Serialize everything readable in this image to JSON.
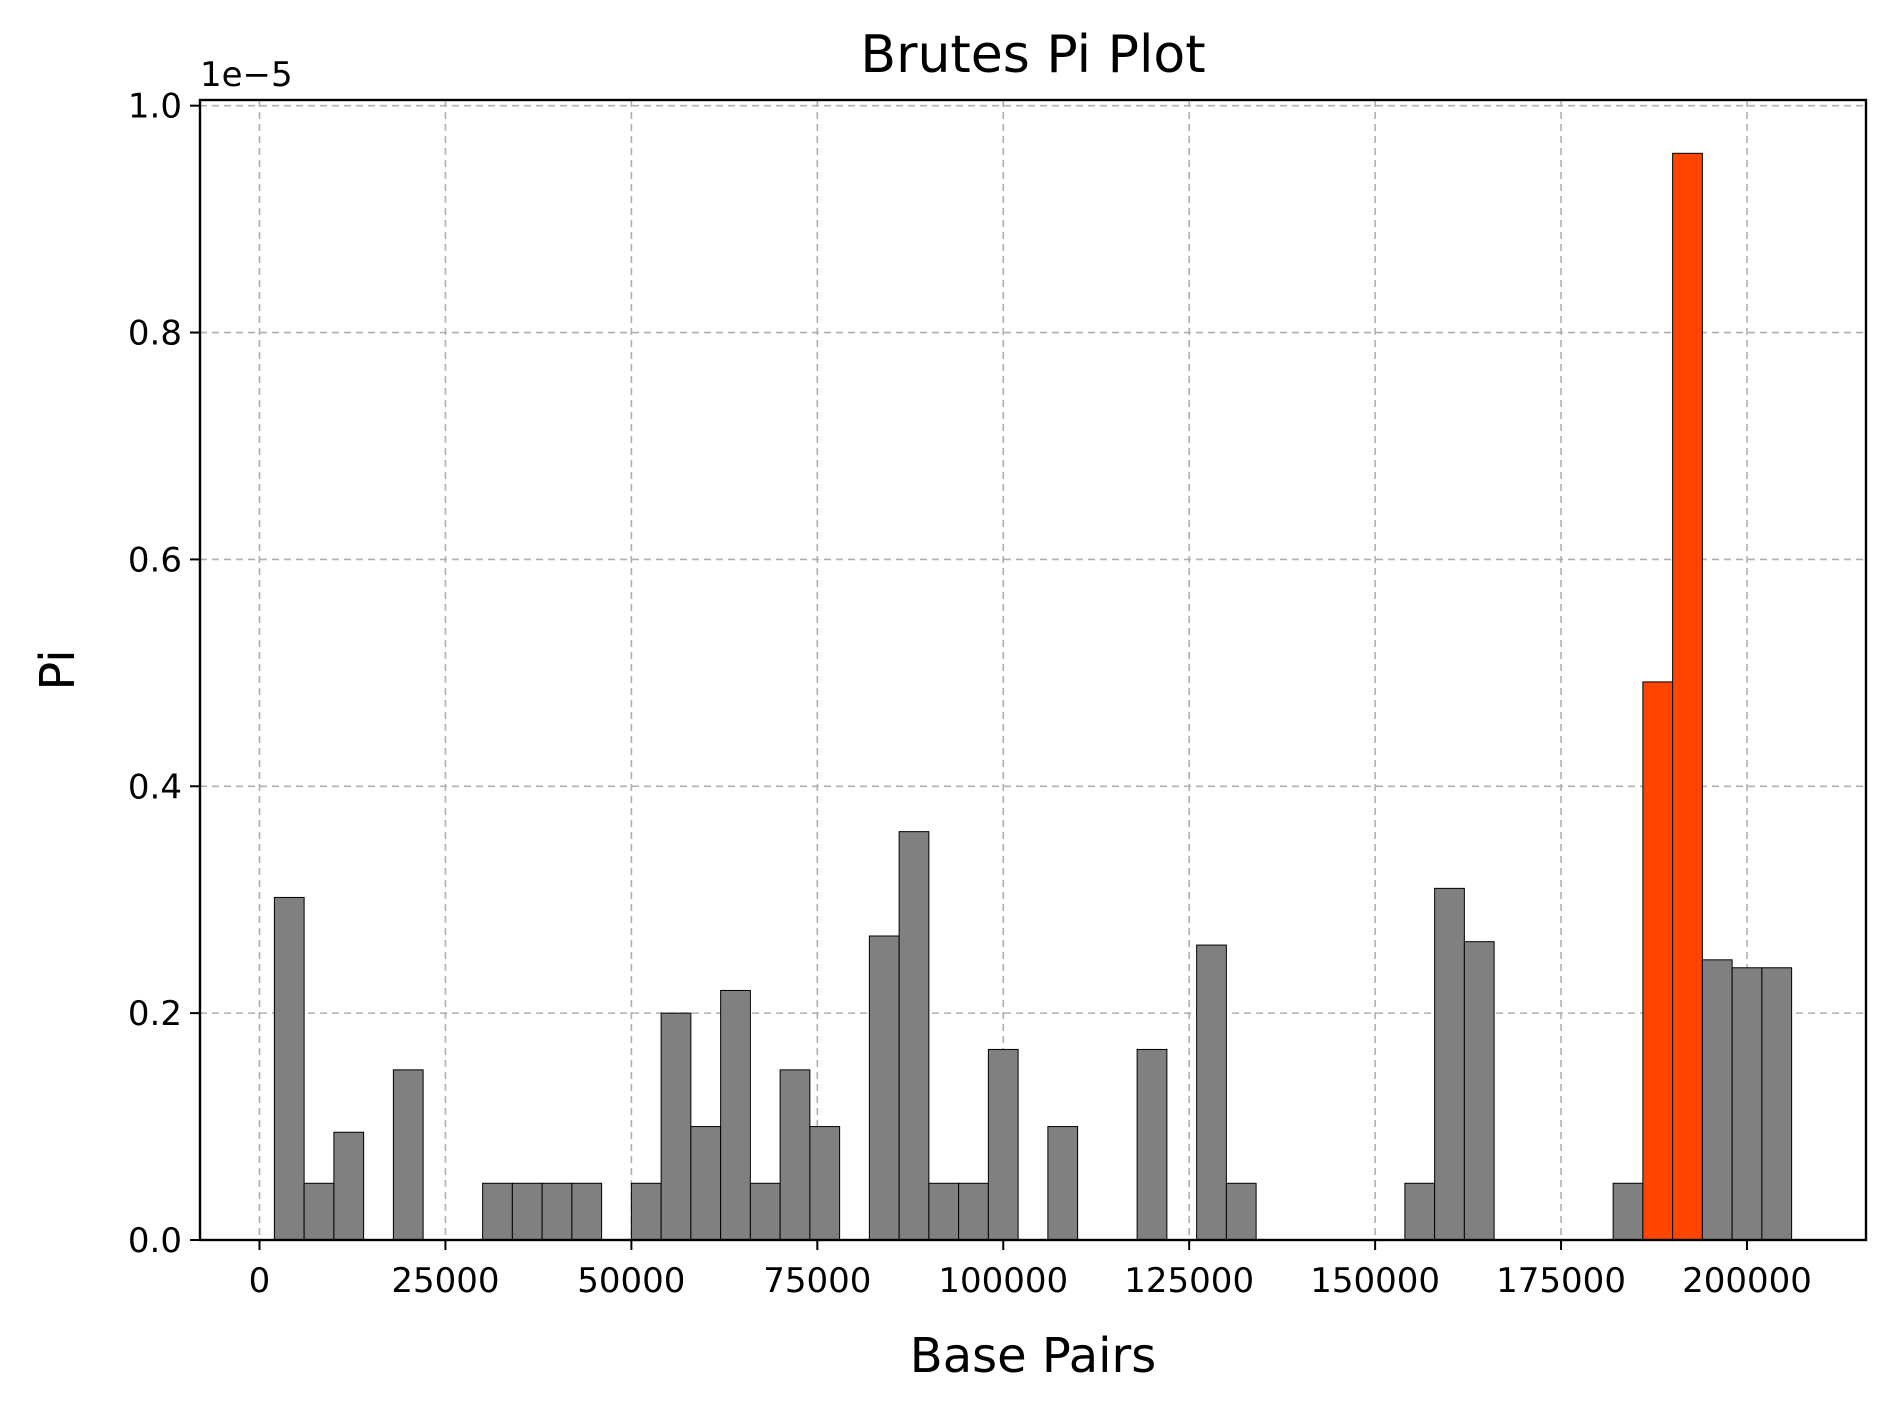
{
  "chart_data": {
    "type": "bar",
    "title": "Brutes Pi Plot",
    "xlabel": "Base Pairs",
    "ylabel": "Pi",
    "y_offset_label": "1e−5",
    "xlim": [
      -8000,
      216000
    ],
    "ylim": [
      0,
      1.005
    ],
    "x_ticks": [
      0,
      25000,
      50000,
      75000,
      100000,
      125000,
      150000,
      175000,
      200000
    ],
    "y_ticks": [
      0.0,
      0.2,
      0.4,
      0.6,
      0.8,
      1.0
    ],
    "x_tick_labels": [
      "0",
      "25000",
      "50000",
      "75000",
      "100000",
      "125000",
      "150000",
      "175000",
      "200000"
    ],
    "y_tick_labels": [
      "0.0",
      "0.2",
      "0.4",
      "0.6",
      "0.8",
      "1.0"
    ],
    "grid": true,
    "bar_width": 4000,
    "colors": {
      "default": "#808080",
      "highlight": "#ff4500",
      "edge": "#000000",
      "grid": "#b0b0b0"
    },
    "x": [
      4000,
      8000,
      12000,
      20000,
      32000,
      36000,
      40000,
      44000,
      52000,
      56000,
      60000,
      64000,
      68000,
      72000,
      76000,
      84000,
      88000,
      92000,
      96000,
      100000,
      108000,
      120000,
      128000,
      132000,
      156000,
      160000,
      164000,
      184000,
      188000,
      192000,
      196000,
      200000,
      204000
    ],
    "values": [
      0.302,
      0.05,
      0.095,
      0.15,
      0.05,
      0.05,
      0.05,
      0.05,
      0.05,
      0.2,
      0.1,
      0.22,
      0.05,
      0.15,
      0.1,
      0.268,
      0.36,
      0.05,
      0.05,
      0.168,
      0.1,
      0.168,
      0.26,
      0.05,
      0.05,
      0.31,
      0.263,
      0.05,
      0.492,
      0.958,
      0.247,
      0.24,
      0.24
    ],
    "highlight": [
      false,
      false,
      false,
      false,
      false,
      false,
      false,
      false,
      false,
      false,
      false,
      false,
      false,
      false,
      false,
      false,
      false,
      false,
      false,
      false,
      false,
      false,
      false,
      false,
      false,
      false,
      false,
      false,
      true,
      true,
      false,
      false,
      false
    ]
  }
}
